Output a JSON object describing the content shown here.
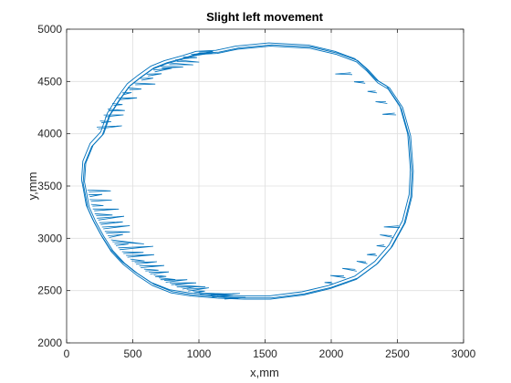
{
  "chart_data": {
    "type": "line",
    "title": "Slight left movement",
    "xlabel": "x,mm",
    "ylabel": "y,mm",
    "xlim": [
      0,
      3000
    ],
    "ylim": [
      2000,
      5000
    ],
    "xticks": [
      0,
      500,
      1000,
      1500,
      2000,
      2500,
      3000
    ],
    "yticks": [
      2000,
      2500,
      3000,
      3500,
      4000,
      4500,
      5000
    ],
    "xtick_labels": [
      "0",
      "500",
      "1000",
      "1500",
      "2000",
      "2500",
      "3000"
    ],
    "ytick_labels": [
      "2000",
      "2500",
      "3000",
      "3500",
      "4000",
      "4500",
      "5000"
    ],
    "grid": true,
    "colors": {
      "series": "#0072BD",
      "grid": "#dfdfdf",
      "axis": "#262626"
    },
    "series": [
      {
        "ellipse_center": [
          1385,
          3630
        ],
        "ellipse_radii": [
          1240,
          1210
        ],
        "loops": 3,
        "points": [
          [
            2620,
            3640
          ],
          [
            2600,
            3980
          ],
          [
            2540,
            4250
          ],
          [
            2440,
            4440
          ],
          [
            2360,
            4500
          ],
          [
            2280,
            4610
          ],
          [
            2200,
            4700
          ],
          [
            2050,
            4770
          ],
          [
            1850,
            4830
          ],
          [
            1550,
            4850
          ],
          [
            1300,
            4820
          ],
          [
            1150,
            4780
          ],
          [
            1000,
            4770
          ],
          [
            900,
            4730
          ],
          [
            760,
            4680
          ],
          [
            660,
            4630
          ],
          [
            560,
            4540
          ],
          [
            480,
            4460
          ],
          [
            400,
            4320
          ],
          [
            330,
            4180
          ],
          [
            280,
            4000
          ],
          [
            200,
            3890
          ],
          [
            145,
            3720
          ],
          [
            135,
            3540
          ],
          [
            150,
            3440
          ],
          [
            170,
            3300
          ],
          [
            220,
            3160
          ],
          [
            280,
            3020
          ],
          [
            350,
            2880
          ],
          [
            440,
            2760
          ],
          [
            540,
            2660
          ],
          [
            660,
            2560
          ],
          [
            800,
            2490
          ],
          [
            950,
            2460
          ],
          [
            1150,
            2440
          ],
          [
            1350,
            2430
          ],
          [
            1550,
            2430
          ],
          [
            1800,
            2470
          ],
          [
            2000,
            2530
          ],
          [
            2200,
            2620
          ],
          [
            2350,
            2760
          ],
          [
            2460,
            2920
          ],
          [
            2560,
            3150
          ],
          [
            2610,
            3400
          ],
          [
            2620,
            3640
          ]
        ]
      }
    ]
  }
}
